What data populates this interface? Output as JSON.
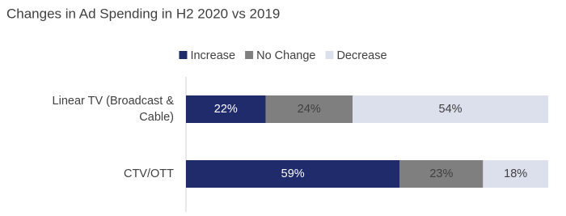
{
  "chart_data": {
    "type": "stacked-barh",
    "title": "Changes in Ad Spending in H2 2020 vs 2019",
    "categories": [
      "Linear TV (Broadcast & Cable)",
      "CTV/OTT"
    ],
    "series": [
      {
        "name": "Increase",
        "color": "#1f2b6b",
        "values": [
          22,
          59
        ],
        "value_labels": [
          "22%",
          "59%"
        ]
      },
      {
        "name": "No Change",
        "color": "#7f7f7f",
        "values": [
          24,
          23
        ],
        "value_labels": [
          "24%",
          "23%"
        ]
      },
      {
        "name": "Decrease",
        "color": "#dcdfec",
        "values": [
          54,
          18
        ],
        "value_labels": [
          "54%",
          "18%"
        ]
      }
    ],
    "legend": "top"
  }
}
